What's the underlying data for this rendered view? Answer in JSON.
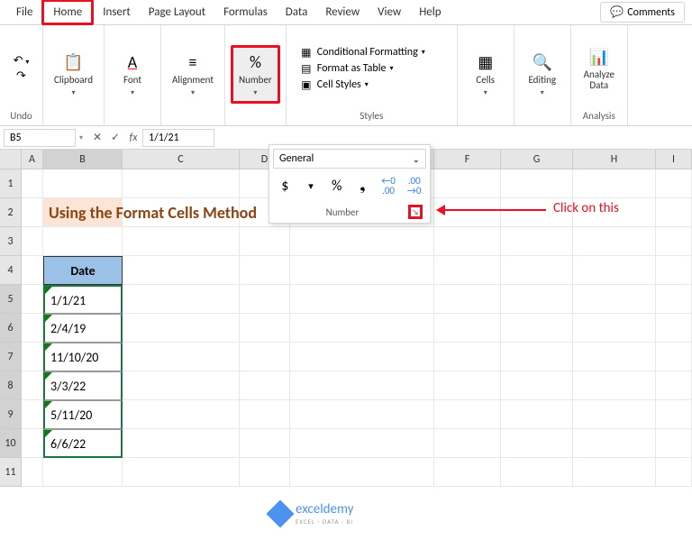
{
  "tabs": {
    "file": "File",
    "home": "Home",
    "insert": "Insert",
    "page_layout": "Page Layout",
    "formulas": "Formulas",
    "data": "Data",
    "review": "Review",
    "view": "View",
    "help": "Help"
  },
  "comments_btn": "Comments",
  "ribbon": {
    "undo": {
      "label": "Undo"
    },
    "clipboard": {
      "label": "Clipboard"
    },
    "font": {
      "label": "Font"
    },
    "alignment": {
      "label": "Alignment"
    },
    "number": {
      "label": "Number",
      "icon": "%"
    },
    "styles": {
      "label": "Styles",
      "cond": "Conditional Formatting",
      "table": "Format as Table",
      "cell": "Cell Styles"
    },
    "cells": {
      "label": "Cells"
    },
    "editing": {
      "label": "Editing"
    },
    "analysis": {
      "label": "Analysis",
      "analyze": "Analyze\nData"
    }
  },
  "formula_bar": {
    "name_box": "B5",
    "value": "1/1/21"
  },
  "number_dropdown": {
    "format": "General",
    "footer": "Number",
    "chev": "⌄",
    "dollar": "$",
    "percent": "%",
    "comma": "❟",
    "inc": "←0\n.00",
    "dec": ".00\n→0"
  },
  "annotation": {
    "text": "Click on this"
  },
  "columns": [
    "A",
    "B",
    "C",
    "D",
    "E",
    "F",
    "G",
    "H",
    "I"
  ],
  "rows": [
    "1",
    "2",
    "3",
    "4",
    "5",
    "6",
    "7",
    "8",
    "9",
    "10",
    "11"
  ],
  "sheet": {
    "title": "Using the Format Cells Method",
    "header": "Date",
    "data": [
      "1/1/21",
      "2/4/19",
      "11/10/20",
      "3/3/22",
      "5/11/20",
      "6/6/22"
    ]
  },
  "watermark": {
    "name": "exceldemy",
    "sub": "EXCEL · DATA · BI"
  },
  "colors": {
    "highlight": "#e81123",
    "accent": "#217346",
    "tab_active": "#185abd",
    "title_bg": "#fce4d6",
    "title_fg": "#8b4513",
    "header_bg": "#9bc2e6"
  }
}
